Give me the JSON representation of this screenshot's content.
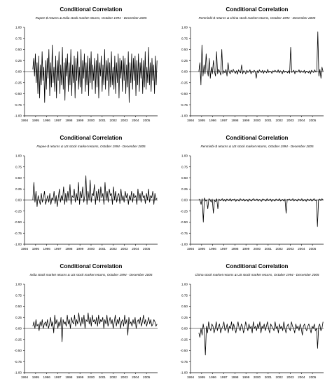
{
  "figure": {
    "panels_label": "Conditional Correlation"
  },
  "chart_data": [
    {
      "type": "line",
      "title": "Conditional Correlation",
      "subtitle": "Rupee-$ returns & India stock market returns, October 1994 - December 2005",
      "xlabel": "",
      "ylabel": "",
      "x_ticks": [
        "1994",
        "1995",
        "1996",
        "1997",
        "1998",
        "1999",
        "2000",
        "2001",
        "2002",
        "2003",
        "2004",
        "2005"
      ],
      "y_ticks": [
        "1.00",
        "0.75",
        "0.50",
        "0.25",
        "0.00",
        "-0.25",
        "-0.50",
        "-0.75",
        "-1.00"
      ],
      "xlim": [
        1994,
        2006
      ],
      "ylim": [
        -1.0,
        1.0
      ],
      "x_start": 1994.75,
      "x_end": 2005.95,
      "reference_line": 0.0,
      "grid": false,
      "series": [
        {
          "values": [
            0.05,
            0.3,
            -0.1,
            0.4,
            -0.25,
            0.2,
            -0.5,
            0.35,
            -0.6,
            0.15,
            -0.3,
            0.45,
            -0.2,
            0.1,
            -0.7,
            0.25,
            -0.4,
            0.3,
            -0.15,
            0.5,
            -0.55,
            0.2,
            -0.35,
            0.6,
            -0.25,
            0.1,
            -0.45,
            0.35,
            -0.6,
            0.25,
            -0.2,
            0.45,
            -0.5,
            0.15,
            -0.3,
            0.55,
            -0.4,
            0.2,
            -0.65,
            0.3,
            -0.1,
            0.4,
            -0.45,
            0.2,
            -0.3,
            0.5,
            -0.55,
            0.15,
            -0.25,
            0.35,
            -0.6,
            0.3,
            -0.2,
            0.45,
            -0.4,
            0.1,
            -0.35,
            0.5,
            -0.5,
            0.25,
            -0.15,
            0.4,
            -0.45,
            0.2,
            -0.3,
            0.35,
            -0.55,
            0.3,
            -0.25,
            0.45,
            -0.4,
            0.15,
            -0.2,
            0.3,
            -0.5,
            0.25,
            -0.35,
            0.4,
            -0.6,
            0.2,
            -0.1,
            0.35,
            -0.45,
            0.15,
            -0.3,
            0.5,
            -0.4,
            0.25,
            -0.2,
            0.3,
            -0.55,
            0.2,
            -0.35,
            0.45,
            -0.3,
            0.1,
            -0.4,
            0.35,
            -0.5,
            0.2,
            -0.25,
            0.4,
            -0.6,
            0.3,
            -0.15,
            0.25,
            -0.45,
            0.35,
            -0.2,
            0.3,
            -0.5,
            0.15,
            -0.35,
            0.45,
            -0.7,
            0.2,
            -0.25,
            0.4,
            -0.4,
            0.3,
            -0.2,
            0.35,
            -0.55,
            0.25,
            -0.3,
            0.4,
            -0.45,
            0.2,
            -0.15,
            0.3,
            -0.5,
            0.25,
            -0.35,
            0.45,
            -0.4,
            0.1,
            -0.25,
            0.55,
            -0.3,
            0.2,
            -0.45,
            0.3,
            -0.2,
            0.15,
            -0.5,
            0.35,
            -0.3,
            0.25
          ]
        }
      ]
    },
    {
      "type": "line",
      "title": "Conditional Correlation",
      "subtitle": "Renminbi-$ returns & China stock market returns, October 1994 - December 2005",
      "xlabel": "",
      "ylabel": "",
      "x_ticks": [
        "1994",
        "1995",
        "1996",
        "1997",
        "1998",
        "1999",
        "2000",
        "2001",
        "2002",
        "2003",
        "2004",
        "2005"
      ],
      "y_ticks": [
        "1.00",
        "0.75",
        "0.50",
        "0.25",
        "0.00",
        "-0.25",
        "-0.50",
        "-0.75",
        "-1.00"
      ],
      "xlim": [
        1994,
        2006
      ],
      "ylim": [
        -1.0,
        1.0
      ],
      "x_start": 1994.75,
      "x_end": 2005.95,
      "reference_line": 0.0,
      "grid": false,
      "series": [
        {
          "values": [
            0.0,
            0.2,
            -0.3,
            0.6,
            -0.1,
            0.15,
            -0.05,
            0.4,
            0.05,
            -0.1,
            0.3,
            -0.15,
            0.1,
            -0.05,
            0.25,
            0.0,
            -0.1,
            0.45,
            -0.05,
            0.05,
            0.0,
            -0.08,
            0.5,
            -0.05,
            0.02,
            -0.03,
            0.05,
            -0.1,
            0.2,
            0.0,
            -0.05,
            0.03,
            -0.02,
            0.05,
            0.0,
            -0.04,
            0.02,
            -0.06,
            0.04,
            0.0,
            -0.03,
            0.15,
            -0.05,
            0.02,
            0.0,
            -0.05,
            0.03,
            -0.02,
            0.0,
            0.04,
            -0.05,
            0.01,
            -0.02,
            0.03,
            0.0,
            -0.15,
            0.02,
            -0.03,
            0.04,
            0.0,
            -0.02,
            0.03,
            -0.04,
            0.02,
            0.0,
            -0.03,
            0.05,
            -0.02,
            0.01,
            0.0,
            -0.04,
            0.02,
            -0.01,
            0.03,
            0.0,
            -0.02,
            0.04,
            -0.03,
            0.02,
            0.0,
            -0.05,
            0.03,
            -0.02,
            0.01,
            0.0,
            -0.03,
            0.02,
            -0.04,
            0.55,
            -0.02,
            0.0,
            0.03,
            -0.05,
            0.02,
            -0.01,
            0.0,
            0.04,
            -0.03,
            0.02,
            0.0,
            -0.02,
            0.03,
            -0.04,
            0.01,
            0.0,
            -0.03,
            0.02,
            -0.05,
            0.03,
            0.0,
            -0.02,
            0.04,
            -0.01,
            0.0,
            0.9,
            -0.1,
            0.05,
            -0.15,
            0.1,
            0.0
          ]
        }
      ]
    },
    {
      "type": "line",
      "title": "Conditional Correlation",
      "subtitle": "Rupee-$ returns & US stock market returns, October 1994 - December 2005",
      "xlabel": "",
      "ylabel": "",
      "x_ticks": [
        "1994",
        "1995",
        "1996",
        "1997",
        "1998",
        "1999",
        "2000",
        "2001",
        "2002",
        "2003",
        "2004",
        "2005"
      ],
      "y_ticks": [
        "1.00",
        "0.75",
        "0.50",
        "0.25",
        "0.00",
        "-0.25",
        "-0.50",
        "-0.75",
        "-1.00"
      ],
      "xlim": [
        1994,
        2006
      ],
      "ylim": [
        -1.0,
        1.0
      ],
      "x_start": 1994.75,
      "x_end": 2005.95,
      "reference_line": 0.0,
      "grid": false,
      "series": [
        {
          "values": [
            0.0,
            0.4,
            -0.05,
            0.2,
            -0.15,
            0.1,
            0.0,
            -0.1,
            0.15,
            -0.05,
            0.05,
            0.2,
            -0.1,
            0.0,
            0.1,
            -0.05,
            0.15,
            -0.1,
            0.05,
            0.0,
            0.2,
            -0.08,
            0.1,
            -0.15,
            0.05,
            0.25,
            -0.05,
            0.1,
            0.0,
            0.3,
            -0.1,
            0.15,
            -0.05,
            0.2,
            0.0,
            0.35,
            -0.1,
            0.1,
            0.05,
            0.25,
            -0.05,
            0.15,
            0.0,
            0.4,
            -0.1,
            0.2,
            0.05,
            0.3,
            -0.05,
            0.1,
            0.55,
            -0.1,
            0.2,
            0.0,
            0.45,
            -0.05,
            0.15,
            0.1,
            0.35,
            -0.1,
            0.2,
            0.0,
            0.25,
            -0.05,
            0.3,
            0.05,
            0.15,
            -0.1,
            0.4,
            0.0,
            0.2,
            -0.05,
            0.25,
            0.1,
            0.15,
            -0.1,
            0.3,
            0.0,
            0.2,
            -0.05,
            0.1,
            0.15,
            -0.08,
            0.25,
            0.0,
            0.1,
            -0.05,
            0.2,
            0.05,
            0.15,
            -0.1,
            0.1,
            0.0,
            0.2,
            -0.05,
            0.15,
            0.05,
            0.1,
            -0.1,
            0.25,
            0.0,
            0.15,
            -0.05,
            0.2,
            0.05,
            0.1,
            -0.08,
            0.15,
            0.0,
            0.25,
            -0.05,
            0.1,
            0.05,
            0.2,
            -0.1,
            0.15,
            0.0,
            0.05
          ]
        }
      ]
    },
    {
      "type": "line",
      "title": "Conditional Correlation",
      "subtitle": "Renminbi-$ returns & US stock market returns, October 1994 - December 2005",
      "xlabel": "",
      "ylabel": "",
      "x_ticks": [
        "1994",
        "1995",
        "1996",
        "1997",
        "1998",
        "1999",
        "2000",
        "2001",
        "2002",
        "2003",
        "2004",
        "2005"
      ],
      "y_ticks": [
        "1.00",
        "0.75",
        "0.50",
        "0.25",
        "0.00",
        "-0.25",
        "-0.50",
        "-0.75",
        "-1.00"
      ],
      "xlim": [
        1994,
        2006
      ],
      "ylim": [
        -1.0,
        1.0
      ],
      "x_start": 1994.75,
      "x_end": 2005.95,
      "reference_line": 0.0,
      "grid": false,
      "series": [
        {
          "values": [
            0.02,
            0.0,
            -0.1,
            0.03,
            -0.5,
            0.05,
            -0.02,
            0.0,
            -0.2,
            0.03,
            0.01,
            -0.05,
            0.02,
            -0.3,
            0.0,
            -0.04,
            0.03,
            -0.2,
            0.02,
            -0.01,
            0.0,
            0.03,
            -0.02,
            0.01,
            -0.03,
            0.02,
            0.0,
            -0.01,
            0.03,
            -0.02,
            0.01,
            0.0,
            0.02,
            -0.03,
            0.01,
            0.0,
            -0.02,
            0.03,
            0.0,
            -0.01,
            0.02,
            -0.02,
            0.0,
            0.01,
            -0.03,
            0.02,
            0.0,
            -0.02,
            0.01,
            0.03,
            -0.01,
            0.0,
            0.02,
            -0.02,
            0.01,
            0.0,
            -0.03,
            0.02,
            0.01,
            0.0,
            -0.02,
            0.03,
            -0.01,
            0.0,
            0.02,
            -0.03,
            0.01,
            0.0,
            -0.02,
            0.02,
            0.0,
            -0.01,
            0.03,
            -0.02,
            0.0,
            0.01,
            -0.02,
            0.02,
            -0.3,
            0.01,
            0.0,
            0.02,
            -0.01,
            0.0,
            0.03,
            -0.02,
            0.01,
            0.0,
            -0.02,
            0.02,
            0.0,
            -0.01,
            0.03,
            -0.02,
            0.0,
            0.01,
            -0.03,
            0.02,
            0.0,
            -0.01,
            0.02,
            -0.02,
            0.0,
            0.03,
            -0.01,
            0.0,
            -0.6,
            0.0,
            0.02,
            -0.01,
            0.03,
            0.0
          ]
        }
      ]
    },
    {
      "type": "line",
      "title": "Conditional Correlation",
      "subtitle": "India stock market returns & US stock market returns, October 1994 - December 2005",
      "xlabel": "",
      "ylabel": "",
      "x_ticks": [
        "1994",
        "1995",
        "1996",
        "1997",
        "1998",
        "1999",
        "2000",
        "2001",
        "2002",
        "2003",
        "2004",
        "2005"
      ],
      "y_ticks": [
        "1.00",
        "0.75",
        "0.50",
        "0.25",
        "0.00",
        "-0.25",
        "-0.50",
        "-0.75",
        "-1.00"
      ],
      "xlim": [
        1994,
        2006
      ],
      "ylim": [
        -1.0,
        1.0
      ],
      "x_start": 1994.75,
      "x_end": 2005.95,
      "reference_line": 0.0,
      "grid": false,
      "series": [
        {
          "values": [
            0.05,
            0.15,
            0.0,
            0.2,
            0.05,
            0.1,
            -0.05,
            0.15,
            0.05,
            0.2,
            0.0,
            0.1,
            0.15,
            0.05,
            0.2,
            0.0,
            0.1,
            0.25,
            0.05,
            0.15,
            -0.1,
            0.3,
            0.1,
            0.2,
            0.0,
            0.15,
            0.05,
            0.25,
            -0.3,
            0.2,
            0.1,
            0.15,
            0.05,
            0.3,
            0.1,
            0.2,
            0.0,
            0.25,
            0.15,
            0.1,
            0.3,
            0.05,
            0.2,
            0.1,
            0.35,
            0.15,
            0.05,
            0.25,
            0.1,
            0.3,
            0.0,
            0.2,
            0.15,
            0.35,
            0.1,
            0.25,
            0.05,
            0.3,
            0.15,
            0.2,
            0.1,
            0.25,
            0.05,
            0.3,
            0.1,
            0.2,
            0.15,
            0.25,
            0.0,
            0.2,
            0.1,
            0.3,
            0.05,
            0.15,
            0.25,
            0.1,
            0.2,
            0.0,
            0.15,
            0.3,
            0.05,
            0.2,
            0.1,
            0.25,
            0.0,
            0.15,
            0.2,
            0.05,
            0.3,
            0.1,
            0.2,
            -0.15,
            0.25,
            0.1,
            0.15,
            0.05,
            0.2,
            0.1,
            0.25,
            0.0,
            0.15,
            0.2,
            0.1,
            0.25,
            0.05,
            0.15,
            0.3,
            0.1,
            0.2,
            0.05,
            0.15,
            0.25,
            0.1,
            0.2,
            0.05,
            0.1,
            0.2,
            0.15,
            0.05,
            0.1
          ]
        }
      ]
    },
    {
      "type": "line",
      "title": "Conditional Correlation",
      "subtitle": "China stock market returns & US stock market returns, October 1994 - December 2005",
      "xlabel": "",
      "ylabel": "",
      "x_ticks": [
        "1994",
        "1995",
        "1996",
        "1997",
        "1998",
        "1999",
        "2000",
        "2001",
        "2002",
        "2003",
        "2004",
        "2005"
      ],
      "y_ticks": [
        "1.00",
        "0.75",
        "0.50",
        "0.25",
        "0.00",
        "-0.25",
        "-0.50",
        "-0.75",
        "-1.00"
      ],
      "xlim": [
        1994,
        2006
      ],
      "ylim": [
        -1.0,
        1.0
      ],
      "x_start": 1994.75,
      "x_end": 2005.95,
      "reference_line": 0.0,
      "grid": false,
      "series": [
        {
          "values": [
            -0.1,
            -0.2,
            0.0,
            -0.15,
            0.1,
            -0.05,
            -0.6,
            0.05,
            -0.1,
            0.15,
            0.0,
            -0.05,
            0.1,
            0.05,
            -0.1,
            0.0,
            0.15,
            -0.05,
            0.05,
            0.1,
            -0.1,
            0.0,
            0.05,
            0.15,
            -0.05,
            0.0,
            0.1,
            -0.1,
            0.05,
            0.0,
            0.15,
            -0.05,
            0.1,
            0.0,
            -0.1,
            0.05,
            0.15,
            0.0,
            -0.05,
            0.1,
            0.05,
            -0.1,
            0.0,
            0.15,
            0.05,
            -0.05,
            0.1,
            0.0,
            0.05,
            -0.1,
            0.15,
            0.0,
            0.05,
            -0.05,
            0.1,
            0.0,
            0.15,
            -0.1,
            0.05,
            0.0,
            0.1,
            -0.05,
            0.05,
            0.15,
            0.0,
            -0.1,
            0.1,
            0.05,
            0.0,
            -0.05,
            0.15,
            0.0,
            0.05,
            -0.1,
            0.1,
            0.0,
            0.05,
            -0.05,
            0.15,
            0.0,
            -0.1,
            0.05,
            0.1,
            0.0,
            -0.05,
            0.15,
            0.05,
            0.0,
            -0.1,
            0.1,
            0.0,
            0.05,
            -0.05,
            0.1,
            0.0,
            -0.15,
            0.05,
            0.1,
            0.0,
            -0.05,
            0.05,
            0.1,
            0.0,
            -0.1,
            0.05,
            0.0,
            0.1,
            -0.05,
            0.0,
            -0.45,
            0.05,
            0.1,
            -0.05,
            0.0,
            0.15
          ]
        }
      ]
    }
  ]
}
